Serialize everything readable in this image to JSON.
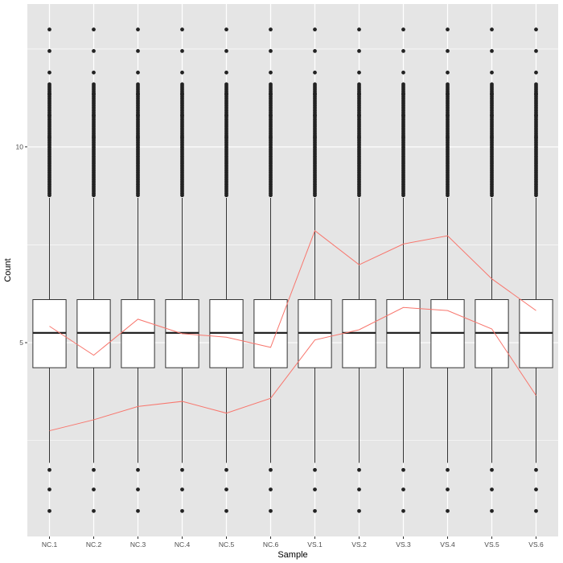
{
  "chart_data": {
    "type": "box",
    "xlabel": "Sample",
    "ylabel": "Count",
    "categories": [
      "NC.1",
      "NC.2",
      "NC.3",
      "NC.4",
      "NC.5",
      "NC.6",
      "VS.1",
      "VS.2",
      "VS.3",
      "VS.4",
      "VS.5",
      "VS.6"
    ],
    "ylim": [
      0.05,
      13.65
    ],
    "y_ticks": [
      5,
      10
    ],
    "grid": true,
    "panel_background": "#e5e5e5",
    "grid_color": "#ffffff",
    "box": {
      "q1": 4.36,
      "median": 5.25,
      "q3": 6.1,
      "whisker_low": 1.93,
      "whisker_high": 8.7,
      "outliers_low": [
        1.75,
        1.25,
        0.7
      ],
      "outlier_high_max": 13.0
    },
    "series": [
      {
        "values": [
          5.42,
          4.68,
          5.6,
          5.23,
          5.14,
          4.88,
          7.86,
          6.99,
          7.52,
          7.73,
          6.63,
          5.82
        ],
        "color": "#f8766d"
      },
      {
        "values": [
          2.75,
          3.03,
          3.37,
          3.5,
          3.2,
          3.58,
          5.07,
          5.33,
          5.9,
          5.82,
          5.35,
          3.65
        ],
        "color": "#f8766d"
      }
    ]
  }
}
